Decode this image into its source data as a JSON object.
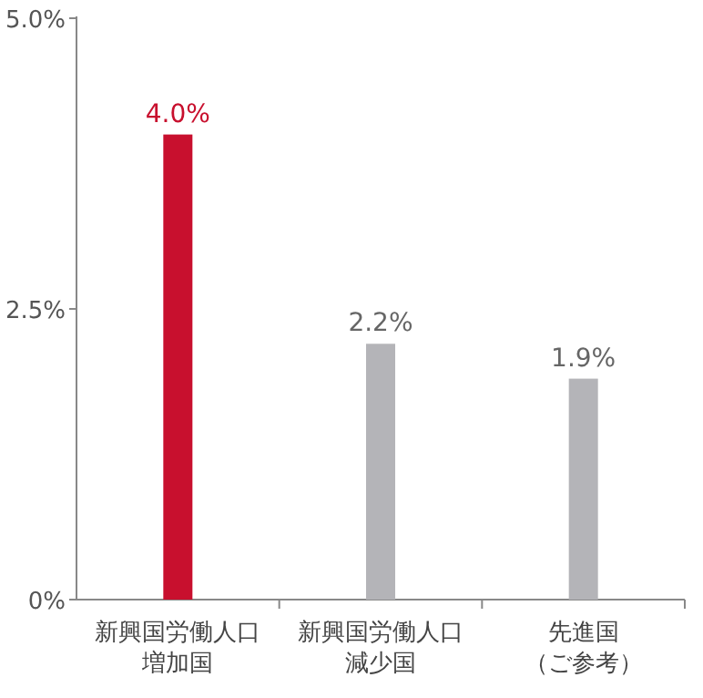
{
  "chart_data": {
    "type": "bar",
    "categories": [
      "新興国労働人口増加国",
      "新興国労働人口減少国",
      "先進国（ご参考）"
    ],
    "values": [
      4.0,
      2.2,
      1.9
    ],
    "colors": [
      "#c8102e",
      "#b4b4b8",
      "#b4b4b8"
    ],
    "value_labels": [
      "4.0%",
      "2.2%",
      "1.9%"
    ],
    "ylim": [
      0,
      5
    ],
    "yticks": [
      {
        "value": 0,
        "label": "0%"
      },
      {
        "value": 2.5,
        "label": "2.5%"
      },
      {
        "value": 5,
        "label": "5.0%"
      }
    ],
    "grid": false
  }
}
